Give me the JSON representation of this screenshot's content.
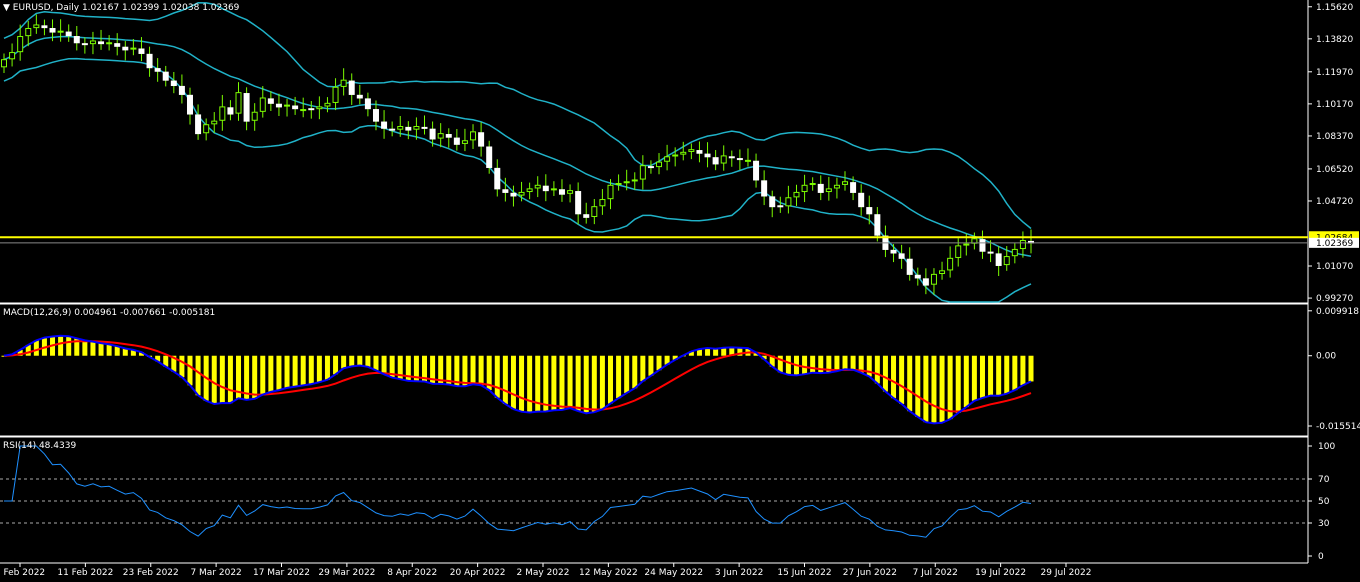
{
  "symbol_header": {
    "arrow": "▼",
    "symbol": "EURUSD",
    "timeframe": "Daily",
    "ohlc": "1.02167 1.02399 1.02038 1.02369"
  },
  "colors": {
    "background": "#000000",
    "bullish_candle": "#7CFC00",
    "bearish_candle": "#FFFFFF",
    "bollinger": "#20B2C8",
    "hline": "#FFFF00",
    "macd_hist": "#FFFF00",
    "macd_line": "#0000FF",
    "macd_signal": "#FF0000",
    "rsi_line": "#1E90FF",
    "axis": "#FFFFFF"
  },
  "price_axis": {
    "ticks": [
      "1.15620",
      "1.13820",
      "1.11970",
      "1.10170",
      "1.08370",
      "1.06520",
      "1.04720",
      "1.02369",
      "1.01070",
      "0.99270"
    ],
    "hline_value": 1.02684,
    "hline_label": "1.02684",
    "current_label": "1.02369",
    "range": [
      0.9905,
      1.16
    ]
  },
  "macd": {
    "label": "MACD(12,26,9) 0.004961 -0.007661 -0.005181",
    "ticks": [
      "0.009918",
      "0.00",
      "-0.015514"
    ],
    "range": [
      -0.0175,
      0.0112
    ]
  },
  "rsi": {
    "label": "RSI(14) 48.4339",
    "ticks": [
      "100",
      "70",
      "50",
      "30",
      "0"
    ],
    "levels": [
      70,
      50,
      30
    ],
    "range": [
      0,
      100
    ]
  },
  "time_axis": {
    "labels": [
      "1 Feb 2022",
      "11 Feb 2022",
      "23 Feb 2022",
      "7 Mar 2022",
      "17 Mar 2022",
      "29 Mar 2022",
      "8 Apr 2022",
      "20 Apr 2022",
      "2 May 2022",
      "12 May 2022",
      "24 May 2022",
      "3 Jun 2022",
      "15 Jun 2022",
      "27 Jun 2022",
      "7 Jul 2022",
      "19 Jul 2022",
      "29 Jul 2022"
    ]
  },
  "chart_data": {
    "type": "candlestick",
    "symbol": "EURUSD",
    "timeframe": "Daily",
    "closes": [
      1.1265,
      1.1305,
      1.1395,
      1.144,
      1.146,
      1.1445,
      1.142,
      1.1425,
      1.14,
      1.136,
      1.135,
      1.137,
      1.1355,
      1.136,
      1.134,
      1.132,
      1.133,
      1.13,
      1.122,
      1.12,
      1.115,
      1.112,
      1.107,
      1.096,
      1.085,
      1.09,
      1.092,
      1.1,
      1.096,
      1.108,
      1.092,
      1.097,
      1.105,
      1.102,
      1.1,
      1.101,
      1.099,
      1.0985,
      1.0985,
      1.1,
      1.102,
      1.111,
      1.115,
      1.107,
      1.105,
      1.099,
      1.092,
      1.088,
      1.087,
      1.089,
      1.087,
      1.089,
      1.088,
      1.082,
      1.085,
      1.083,
      1.079,
      1.081,
      1.086,
      1.078,
      1.066,
      1.054,
      1.052,
      1.05,
      1.052,
      1.054,
      1.056,
      1.053,
      1.054,
      1.051,
      1.053,
      1.04,
      1.038,
      1.044,
      1.048,
      1.056,
      1.057,
      1.058,
      1.059,
      1.067,
      1.066,
      1.069,
      1.072,
      1.073,
      1.0745,
      1.076,
      1.074,
      1.072,
      1.068,
      1.0725,
      1.0715,
      1.0705,
      1.07,
      1.059,
      1.05,
      1.044,
      1.044,
      1.049,
      1.052,
      1.056,
      1.057,
      1.052,
      1.054,
      1.056,
      1.058,
      1.052,
      1.044,
      1.04,
      1.028,
      1.02,
      1.018,
      1.015,
      1.006,
      1.004,
      1.0,
      1.006,
      1.008,
      1.015,
      1.022,
      1.023,
      1.026,
      1.019,
      1.018,
      1.011,
      1.016,
      1.02,
      1.025,
      1.0237
    ],
    "ylim": [
      0.9905,
      1.16
    ],
    "horizontal_line": 1.02684,
    "series": [
      {
        "name": "MACD(12,26,9)",
        "values": []
      },
      {
        "name": "RSI(14)",
        "values": []
      }
    ]
  }
}
